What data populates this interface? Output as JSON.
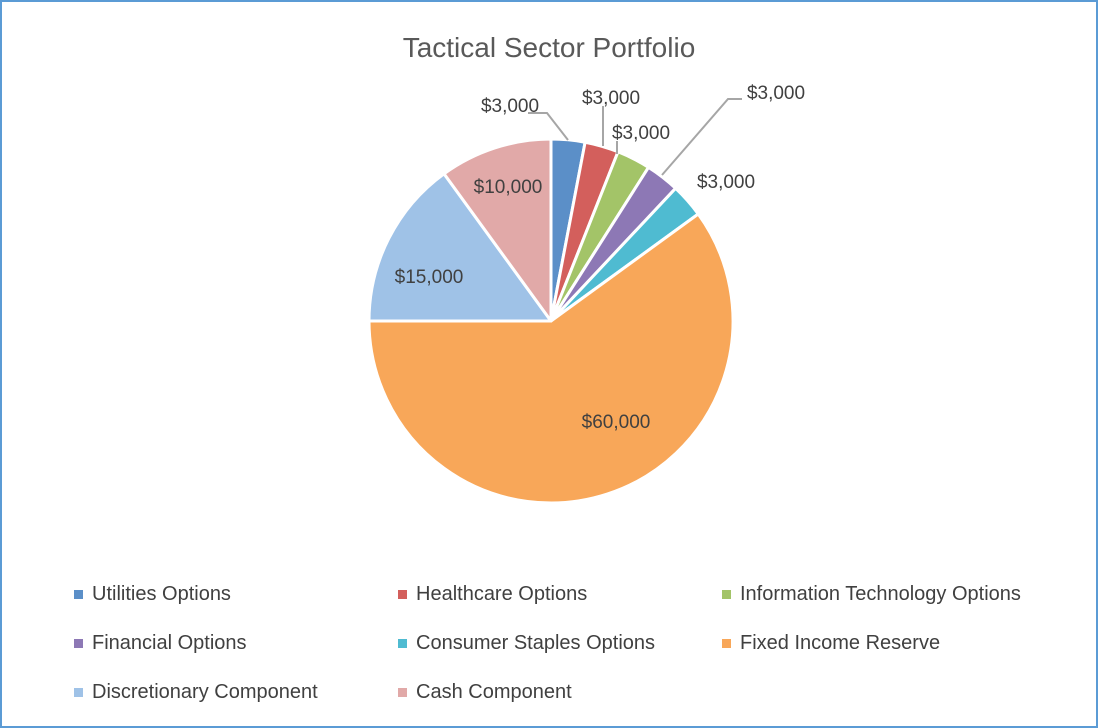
{
  "chart_data": {
    "type": "pie",
    "title": "Tactical Sector Portfolio",
    "legend_position": "bottom",
    "slices": [
      {
        "name": "Utilities Options",
        "value": 3000,
        "label": "$3,000",
        "color": "#5b8fc8"
      },
      {
        "name": "Healthcare Options",
        "value": 3000,
        "label": "$3,000",
        "color": "#d35f5c"
      },
      {
        "name": "Information Technology Options",
        "value": 3000,
        "label": "$3,000",
        "color": "#a3c468"
      },
      {
        "name": "Financial Options",
        "value": 3000,
        "label": "$3,000",
        "color": "#8d78b5"
      },
      {
        "name": "Consumer Staples Options",
        "value": 3000,
        "label": "$3,000",
        "color": "#4fbbd1"
      },
      {
        "name": "Fixed Income Reserve",
        "value": 60000,
        "label": "$60,000",
        "color": "#f8a759"
      },
      {
        "name": "Discretionary Component",
        "value": 15000,
        "label": "$15,000",
        "color": "#9fc2e7"
      },
      {
        "name": "Cash Component",
        "value": 10000,
        "label": "$10,000",
        "color": "#e1a9a8"
      }
    ]
  }
}
